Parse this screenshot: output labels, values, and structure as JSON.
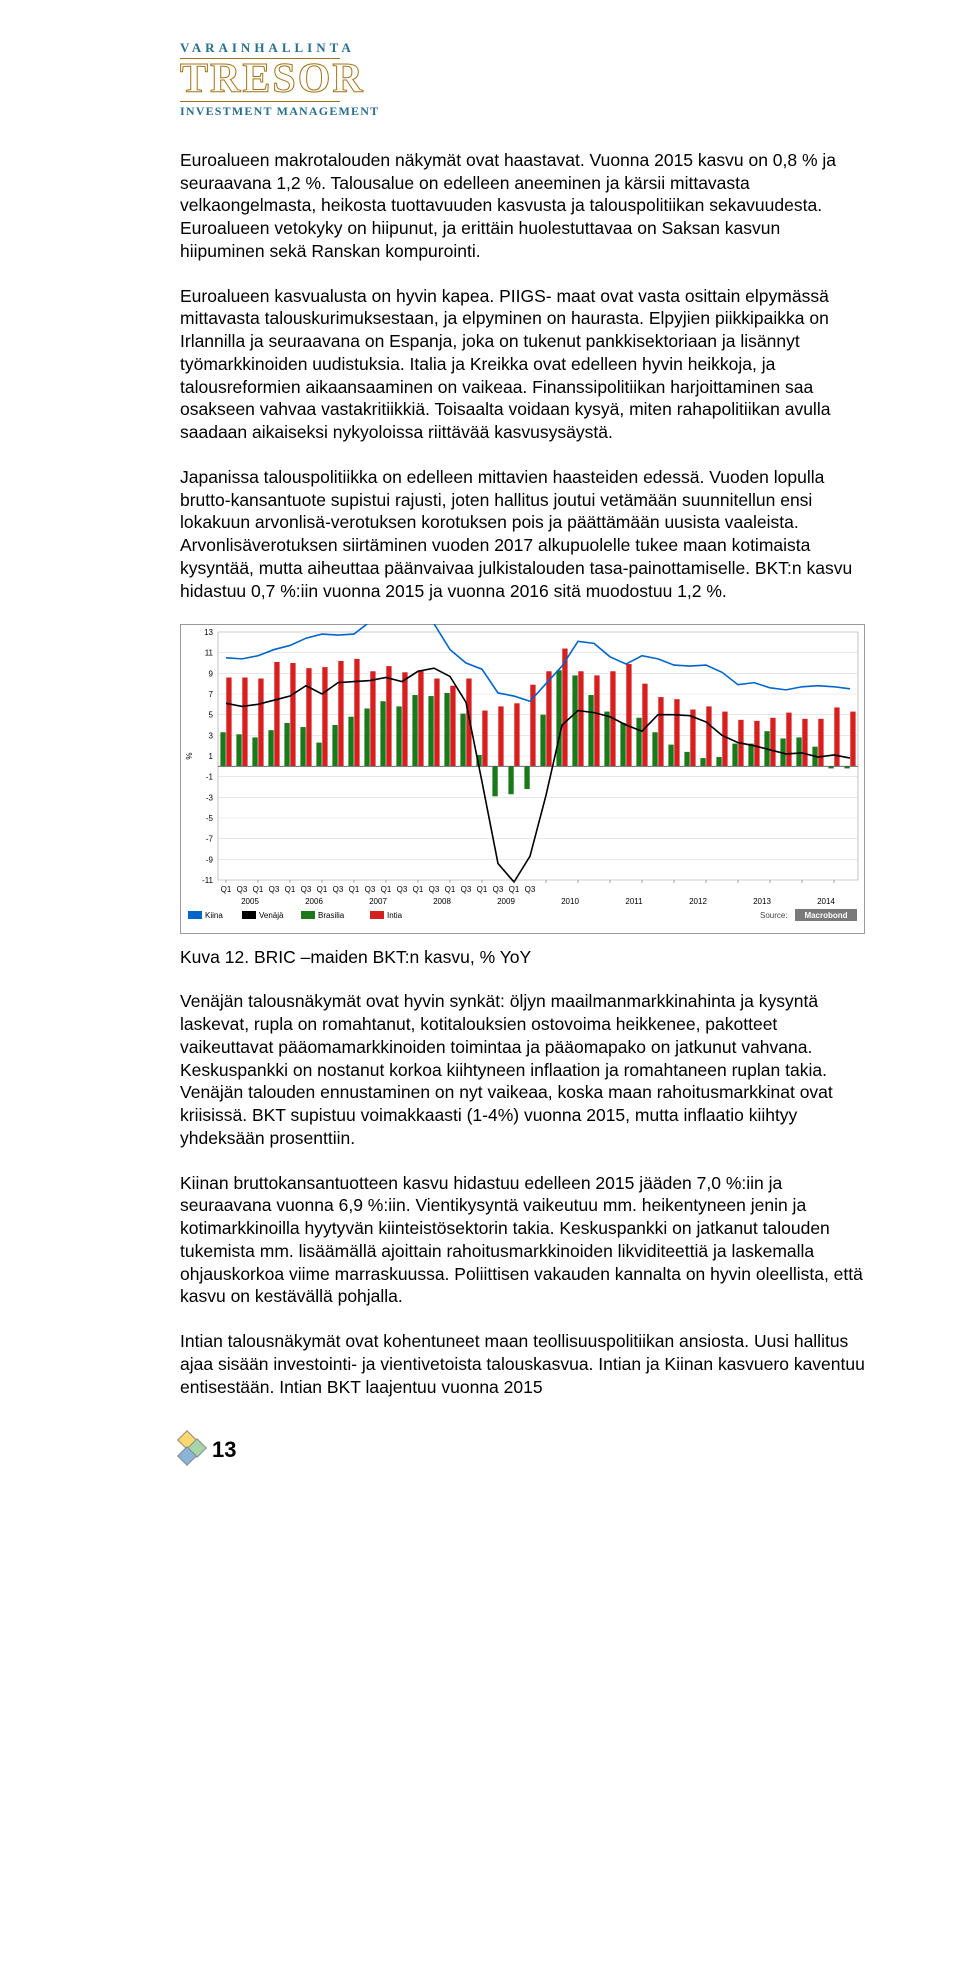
{
  "logo": {
    "top": "VARAINHALLINTA",
    "main": "TRESOR",
    "bottom": "INVESTMENT MANAGEMENT"
  },
  "paragraphs": {
    "p1": "Euroalueen makrotalouden näkymät ovat haastavat. Vuonna 2015 kasvu on 0,8 % ja seuraavana 1,2 %. Talousalue on edelleen aneeminen ja kärsii mittavasta velkaongelmasta, heikosta tuottavuuden kasvusta ja talouspolitiikan sekavuudesta. Euroalueen vetokyky on hiipunut, ja erittäin huolestuttavaa on Saksan kasvun hiipuminen sekä Ranskan kompurointi.",
    "p2": "Euroalueen kasvualusta on hyvin kapea. PIIGS- maat ovat vasta osittain elpymässä mittavasta talouskurimuksestaan, ja elpyminen on haurasta. Elpyjien piikkipaikka on Irlannilla ja seuraavana on Espanja, joka on tukenut pankkisektoriaan ja lisännyt työmarkkinoiden uudistuksia. Italia ja Kreikka ovat edelleen hyvin heikkoja, ja talousreformien aikaansaaminen on vaikeaa. Finanssipolitiikan harjoittaminen saa osakseen vahvaa vastakritiikkiä. Toisaalta voidaan kysyä, miten rahapolitiikan avulla saadaan aikaiseksi nykyoloissa riittävää kasvusysäystä.",
    "p3": "Japanissa talouspolitiikka on edelleen mittavien haasteiden edessä. Vuoden lopulla brutto-kansantuote supistui rajusti, joten hallitus joutui vetämään suunnitellun ensi lokakuun arvonlisä-verotuksen korotuksen pois ja päättämään uusista vaaleista. Arvonlisäverotuksen siirtäminen vuoden 2017 alkupuolelle tukee maan kotimaista kysyntää, mutta aiheuttaa päänvaivaa julkistalouden tasa-painottamiselle.  BKT:n kasvu hidastuu 0,7 %:iin vuonna 2015 ja vuonna 2016 sitä muodostuu 1,2 %.",
    "p4": "Venäjän talousnäkymät ovat hyvin synkät: öljyn maailmanmarkkinahinta ja kysyntä laskevat, rupla on romahtanut, kotitalouksien ostovoima heikkenee, pakotteet vaikeuttavat pääomamarkkinoiden toimintaa ja pääomapako on jatkunut vahvana. Keskuspankki on nostanut korkoa kiihtyneen inflaation ja romahtaneen ruplan takia. Venäjän talouden ennustaminen on nyt vaikeaa, koska maan rahoitusmarkkinat ovat kriisissä. BKT supistuu voimakkaasti (1-4%) vuonna 2015, mutta inflaatio kiihtyy yhdeksään prosenttiin.",
    "p5": "Kiinan bruttokansantuotteen kasvu hidastuu edelleen 2015 jääden 7,0 %:iin ja seuraavana vuonna 6,9 %:iin. Vientikysyntä vaikeutuu mm. heikentyneen jenin ja kotimarkkinoilla hyytyvän kiinteistösektorin takia. Keskuspankki on jatkanut talouden tukemista mm. lisäämällä ajoittain rahoitusmarkkinoiden likviditeettiä ja laskemalla ohjauskorkoa viime marraskuussa. Poliittisen vakauden kannalta on hyvin oleellista, että kasvu on kestävällä pohjalla.",
    "p6": "Intian talousnäkymät ovat kohentuneet maan teollisuuspolitiikan ansiosta. Uusi hallitus ajaa sisään investointi- ja vientivetoista talouskasvua. Intian ja Kiinan kasvuero kaventuu entisestään. Intian BKT laajentuu vuonna 2015"
  },
  "chart": {
    "caption": "Kuva 12.  BRIC –maiden BKT:n kasvu, % YoY",
    "type": "bar-line-combo",
    "ylabel": "%",
    "ylim": [
      -11,
      13
    ],
    "ytick_step": 2,
    "yticks": [
      -11,
      -9,
      -7,
      -5,
      -3,
      -1,
      1,
      3,
      5,
      7,
      9,
      11,
      13
    ],
    "xticks": [
      "Q1",
      "Q3",
      "Q1",
      "Q3",
      "Q1",
      "Q3",
      "Q1",
      "Q3",
      "Q1",
      "Q3",
      "Q1",
      "Q3",
      "Q1",
      "Q3",
      "Q1",
      "Q3",
      "Q1",
      "Q3",
      "Q1",
      "Q3"
    ],
    "years": [
      "2005",
      "2006",
      "2007",
      "2008",
      "2009",
      "2010",
      "2011",
      "2012",
      "2013",
      "2014"
    ],
    "legend": [
      {
        "label": "Kiina",
        "color": "#0066cc",
        "type": "line"
      },
      {
        "label": "Venäjä",
        "color": "#000000",
        "type": "line"
      },
      {
        "label": "Brasilia",
        "color": "#1a7a1a",
        "type": "bar"
      },
      {
        "label": "Intia",
        "color": "#d62020",
        "type": "bar"
      }
    ],
    "source_label": "Source:",
    "source_logo": "Macrobond",
    "background_color": "#ffffff",
    "grid_color": "#d9d9d9",
    "border_color": "#999999",
    "axis_fontsize": 8,
    "legend_fontsize": 8,
    "series": {
      "brasilia_bars": [
        3.3,
        3.1,
        2.8,
        3.5,
        4.2,
        3.8,
        2.3,
        4.0,
        4.8,
        5.6,
        6.3,
        5.8,
        6.9,
        6.8,
        7.1,
        5.1,
        1.1,
        -2.9,
        -2.7,
        -2.2,
        5.0,
        9.3,
        8.8,
        6.9,
        5.3,
        4.2,
        4.7,
        3.3,
        2.1,
        1.4,
        0.8,
        0.9,
        2.2,
        2.2,
        3.4,
        2.7,
        2.8,
        1.9,
        -0.2,
        -0.2
      ],
      "intia_bars": [
        8.6,
        8.6,
        8.5,
        10.1,
        10.0,
        9.5,
        9.6,
        10.2,
        10.4,
        9.2,
        9.7,
        9.1,
        9.3,
        8.5,
        7.8,
        8.5,
        5.4,
        5.8,
        6.1,
        7.9,
        9.2,
        11.4,
        9.2,
        8.8,
        9.2,
        9.9,
        8.0,
        6.7,
        6.5,
        5.5,
        5.8,
        5.3,
        4.5,
        4.4,
        4.7,
        5.2,
        4.6,
        4.6,
        5.7,
        5.3
      ],
      "kiina_line": [
        10.5,
        10.4,
        10.7,
        11.3,
        11.7,
        12.4,
        12.8,
        12.7,
        12.8,
        14.0,
        14.5,
        14.4,
        14.3,
        13.8,
        11.3,
        10.0,
        9.4,
        7.1,
        6.8,
        6.3,
        8.0,
        9.7,
        12.1,
        11.9,
        10.6,
        9.9,
        10.7,
        10.4,
        9.8,
        9.7,
        9.8,
        9.1,
        7.9,
        8.1,
        7.6,
        7.4,
        7.7,
        7.8,
        7.7,
        7.5
      ],
      "venaja_line": [
        6.1,
        5.8,
        6.0,
        6.4,
        6.8,
        7.8,
        7.0,
        8.1,
        8.2,
        8.3,
        8.6,
        8.2,
        9.2,
        9.5,
        8.7,
        6.2,
        -1.5,
        -9.4,
        -11.2,
        -8.7,
        -2.8,
        4.0,
        5.4,
        5.2,
        4.8,
        4.0,
        3.4,
        5.0,
        5.0,
        4.9,
        4.3,
        3.0,
        2.3,
        2.0,
        1.6,
        1.2,
        1.3,
        0.9,
        1.1,
        0.8
      ]
    }
  },
  "page_number": "13"
}
